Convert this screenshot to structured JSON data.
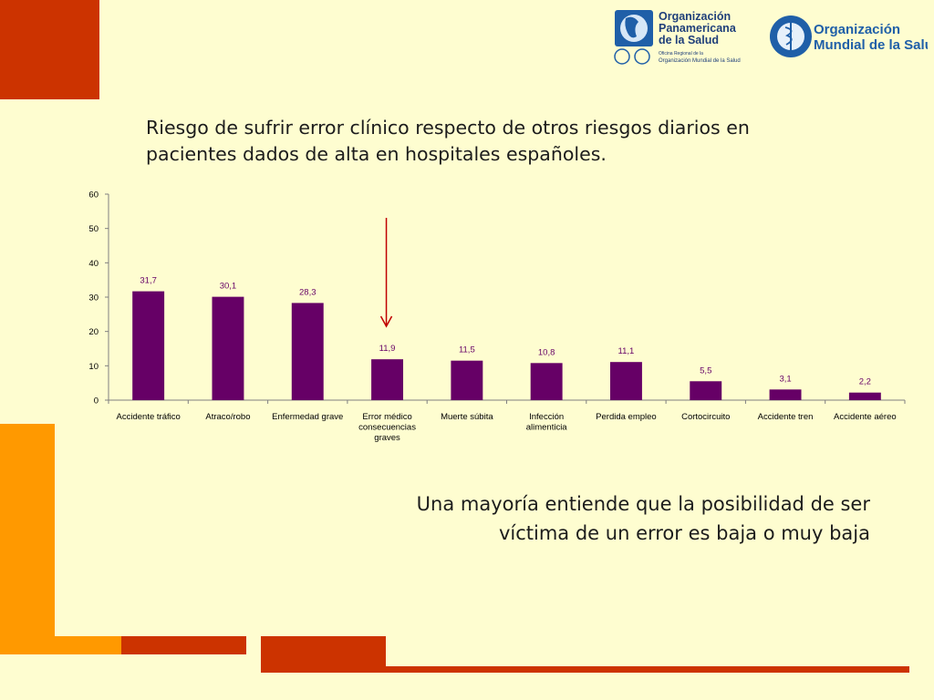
{
  "slide": {
    "title_lines": [
      "Riesgo de sufrir error clínico respecto de otros riesgos diarios en",
      "pacientes dados de alta en hospitales españoles."
    ],
    "conclusion_lines": [
      "Una mayoría entiende que la posibilidad de ser",
      "víctima de un error es baja o muy baja"
    ]
  },
  "logos": {
    "ops": {
      "lines": [
        "Organización",
        "Panamericana",
        "de la Salud"
      ],
      "sub_lines": [
        "Oficina Regional de la",
        "Organización Mundial de la Salud"
      ]
    },
    "oms": {
      "lines": [
        "Organización",
        "Mundial de la Salud"
      ]
    }
  },
  "colors": {
    "background": "#fefdd0",
    "bar": "#660066",
    "arrow": "#c00000",
    "accent_red": "#cc3300",
    "accent_orange": "#ff9900",
    "logo_blue": "#1f5fa8"
  },
  "chart_data": {
    "type": "bar",
    "categories": [
      [
        "Accidente tráfico"
      ],
      [
        "Atraco/robo"
      ],
      [
        "Enfermedad grave"
      ],
      [
        "Error médico",
        "consecuencias",
        "graves"
      ],
      [
        "Muerte súbita"
      ],
      [
        "Infección",
        "alimenticia"
      ],
      [
        "Perdida empleo"
      ],
      [
        "Cortocircuito"
      ],
      [
        "Accidente tren"
      ],
      [
        "Accidente aéreo"
      ]
    ],
    "values": [
      31.7,
      30.1,
      28.3,
      11.9,
      11.5,
      10.8,
      11.1,
      5.5,
      3.1,
      2.2
    ],
    "data_labels": [
      "31,7",
      "30,1",
      "28,3",
      "11,9",
      "11,5",
      "10,8",
      "11,1",
      "5,5",
      "3,1",
      "2,2"
    ],
    "ylim": [
      0,
      60
    ],
    "yticks": [
      "0",
      "10",
      "20",
      "30",
      "40",
      "50",
      "60"
    ],
    "ytick_values": [
      0,
      10,
      20,
      30,
      40,
      50,
      60
    ],
    "highlight": {
      "category_index": 3,
      "marker": "arrow"
    },
    "grid": false,
    "legend": "none"
  }
}
